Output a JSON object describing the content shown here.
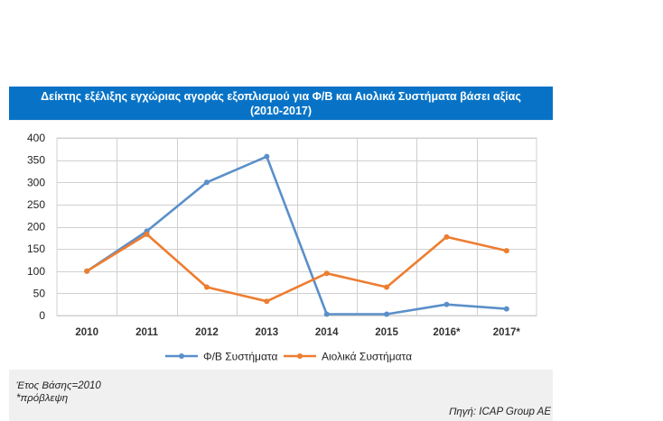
{
  "chart_data": {
    "type": "line",
    "title_line1": "Δείκτης εξέλιξης εγχώριας αγοράς εξοπλισμού για Φ/Β και Αιολικά Συστήματα βάσει αξίας",
    "title_line2": "(2010-2017)",
    "categories": [
      "2010",
      "2011",
      "2012",
      "2013",
      "2014",
      "2015",
      "2016*",
      "2017*"
    ],
    "ylim": [
      0,
      400
    ],
    "yticks": [
      0,
      50,
      100,
      150,
      200,
      250,
      300,
      350,
      400
    ],
    "series": [
      {
        "name": "Φ/Β Συστήματα",
        "color": "#5b8fc9",
        "values": [
          100,
          190,
          300,
          358,
          3,
          3,
          25,
          15
        ]
      },
      {
        "name": "Αιολικά Συστήματα",
        "color": "#ed7d31",
        "values": [
          100,
          183,
          64,
          32,
          95,
          64,
          177,
          146
        ]
      }
    ]
  },
  "notes": {
    "base_year": "Έτος Βάσης=2010",
    "forecast": "*πρόβλεψη"
  },
  "source": "Πηγή: ICAP Group AE"
}
